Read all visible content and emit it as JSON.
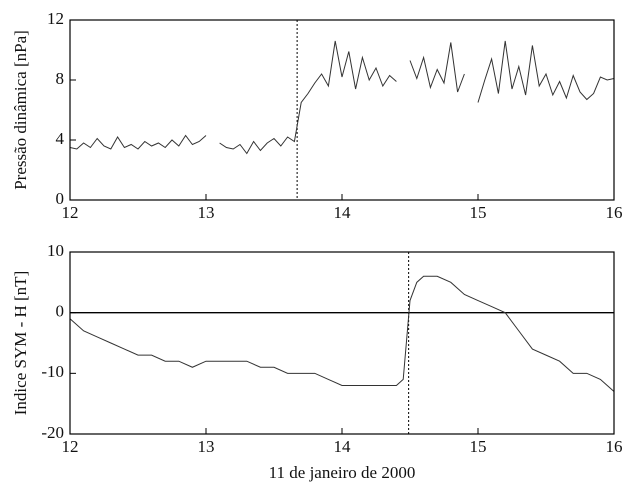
{
  "chart_data": [
    {
      "type": "line",
      "ylabel": "Pressão dinâmica [nPa]",
      "xlim": [
        12,
        16
      ],
      "xticks": [
        12,
        13,
        14,
        15,
        16
      ],
      "ylim": [
        0,
        12
      ],
      "yticks": [
        0,
        4,
        8,
        12
      ],
      "vline": 13.67,
      "color": "#333333",
      "x": [
        12.0,
        12.05,
        12.1,
        12.15,
        12.2,
        12.25,
        12.3,
        12.35,
        12.4,
        12.45,
        12.5,
        12.55,
        12.6,
        12.65,
        12.7,
        12.75,
        12.8,
        12.85,
        12.9,
        12.95,
        13.0,
        13.05,
        13.1,
        13.15,
        13.2,
        13.25,
        13.3,
        13.35,
        13.4,
        13.45,
        13.5,
        13.55,
        13.6,
        13.65,
        13.7,
        13.75,
        13.8,
        13.85,
        13.9,
        13.95,
        14.0,
        14.05,
        14.1,
        14.15,
        14.2,
        14.25,
        14.3,
        14.35,
        14.4,
        14.45,
        14.5,
        14.55,
        14.6,
        14.65,
        14.7,
        14.75,
        14.8,
        14.85,
        14.9,
        14.95,
        15.0,
        15.05,
        15.1,
        15.15,
        15.2,
        15.25,
        15.3,
        15.35,
        15.4,
        15.45,
        15.5,
        15.55,
        15.6,
        15.65,
        15.7,
        15.75,
        15.8,
        15.85,
        15.9,
        15.95,
        16.0
      ],
      "values": [
        3.5,
        3.4,
        3.8,
        3.5,
        4.1,
        3.6,
        3.4,
        4.2,
        3.5,
        3.7,
        3.4,
        3.9,
        3.6,
        3.8,
        3.5,
        4.0,
        3.6,
        4.3,
        3.7,
        3.9,
        4.3,
        null,
        3.8,
        3.5,
        3.4,
        3.7,
        3.1,
        3.9,
        3.3,
        3.8,
        4.1,
        3.6,
        4.2,
        3.9,
        6.5,
        7.1,
        7.8,
        8.4,
        7.6,
        10.6,
        8.2,
        9.9,
        7.4,
        9.5,
        8.0,
        8.8,
        7.6,
        8.3,
        7.9,
        null,
        9.3,
        8.1,
        9.5,
        7.5,
        8.7,
        7.8,
        10.5,
        7.2,
        8.4,
        null,
        6.5,
        8.0,
        9.4,
        7.1,
        10.6,
        7.4,
        8.9,
        7.0,
        10.3,
        7.6,
        8.4,
        7.0,
        7.9,
        6.8,
        8.3,
        7.2,
        6.7,
        7.1,
        8.2,
        8.0,
        8.1
      ]
    },
    {
      "type": "line",
      "ylabel": "Indice SYM - H [nT]",
      "xlabel": "11 de janeiro de 2000",
      "xlim": [
        12,
        16
      ],
      "xticks": [
        12,
        13,
        14,
        15,
        16
      ],
      "ylim": [
        -20,
        10
      ],
      "yticks": [
        -20,
        -10,
        0,
        10
      ],
      "vline": 14.49,
      "hline": 0,
      "color": "#333333",
      "x": [
        12.0,
        12.1,
        12.2,
        12.3,
        12.4,
        12.5,
        12.6,
        12.7,
        12.8,
        12.9,
        13.0,
        13.1,
        13.2,
        13.3,
        13.4,
        13.5,
        13.6,
        13.7,
        13.8,
        13.9,
        14.0,
        14.1,
        14.2,
        14.3,
        14.4,
        14.45,
        14.5,
        14.55,
        14.6,
        14.7,
        14.8,
        14.9,
        15.0,
        15.1,
        15.2,
        15.3,
        15.4,
        15.5,
        15.6,
        15.7,
        15.8,
        15.9,
        16.0
      ],
      "values": [
        -1,
        -3,
        -4,
        -5,
        -6,
        -7,
        -7,
        -8,
        -8,
        -9,
        -8,
        -8,
        -8,
        -8,
        -9,
        -9,
        -10,
        -10,
        -10,
        -11,
        -12,
        -12,
        -12,
        -12,
        -12,
        -11,
        2,
        5,
        6,
        6,
        5,
        3,
        2,
        1,
        0,
        -3,
        -6,
        -7,
        -8,
        -10,
        -10,
        -11,
        -13
      ]
    }
  ]
}
